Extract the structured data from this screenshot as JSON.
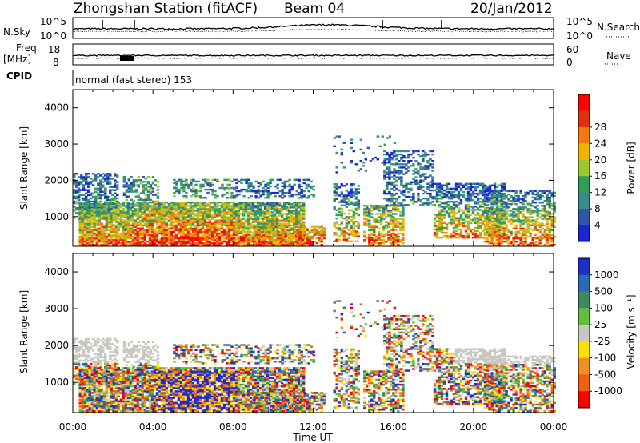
{
  "header": {
    "station": "Zhongshan Station (fitACF)",
    "beam": "Beam 04",
    "date": "20/Jan/2012"
  },
  "top_panel": {
    "left_label": "N.Sky",
    "right_label": "N.Search",
    "left_ticks": [
      "10^5",
      "10^0"
    ],
    "right_ticks": [
      "10^5",
      "10^0"
    ]
  },
  "freq_panel": {
    "left_label_1": "Freq.",
    "left_label_2": "[MHz]",
    "left_ticks": [
      "18",
      "8"
    ],
    "right_label": "Nave",
    "right_ticks": [
      "60",
      "0"
    ]
  },
  "cpid": {
    "label": "CPID",
    "mode": "normal (fast stereo) 153"
  },
  "chart_data": [
    {
      "type": "heatmap",
      "name": "power",
      "ylabel": "Slant Range [km]",
      "xlabel": "",
      "x_ticks": [
        "00:00",
        "04:00",
        "08:00",
        "12:00",
        "16:00",
        "20:00",
        "00:00"
      ],
      "y_ticks": [
        1000,
        2000,
        3000,
        4000
      ],
      "ylim": [
        180,
        4500
      ],
      "xlim_hours": [
        0,
        24
      ],
      "colorbar": {
        "label": "Power [dB]",
        "ticks": [
          "4",
          "8",
          "12",
          "16",
          "20",
          "24",
          "28"
        ],
        "colors": [
          "#1e23d8",
          "#2f57b0",
          "#3c8a8a",
          "#2e9e5a",
          "#9cc82e",
          "#f0b400",
          "#f07a10",
          "#e03010",
          "#ff0000"
        ]
      }
    },
    {
      "type": "heatmap",
      "name": "velocity",
      "ylabel": "Slant Range [km]",
      "xlabel": "Time UT",
      "x_ticks": [
        "00:00",
        "04:00",
        "08:00",
        "12:00",
        "16:00",
        "20:00",
        "00:00"
      ],
      "y_ticks": [
        1000,
        2000,
        3000,
        4000
      ],
      "ylim": [
        180,
        4500
      ],
      "xlim_hours": [
        0,
        24
      ],
      "colorbar": {
        "label": "Velocity [m s⁻¹]",
        "ticks": [
          "1000",
          "500",
          "100",
          "25",
          "-25",
          "-100",
          "-500",
          "-1000"
        ],
        "colors": [
          "#1e2fc8",
          "#2a6ab4",
          "#3c8a62",
          "#5fc040",
          "#c8c8c0",
          "#ffe000",
          "#f09020",
          "#f06010",
          "#ff0000"
        ]
      }
    }
  ]
}
